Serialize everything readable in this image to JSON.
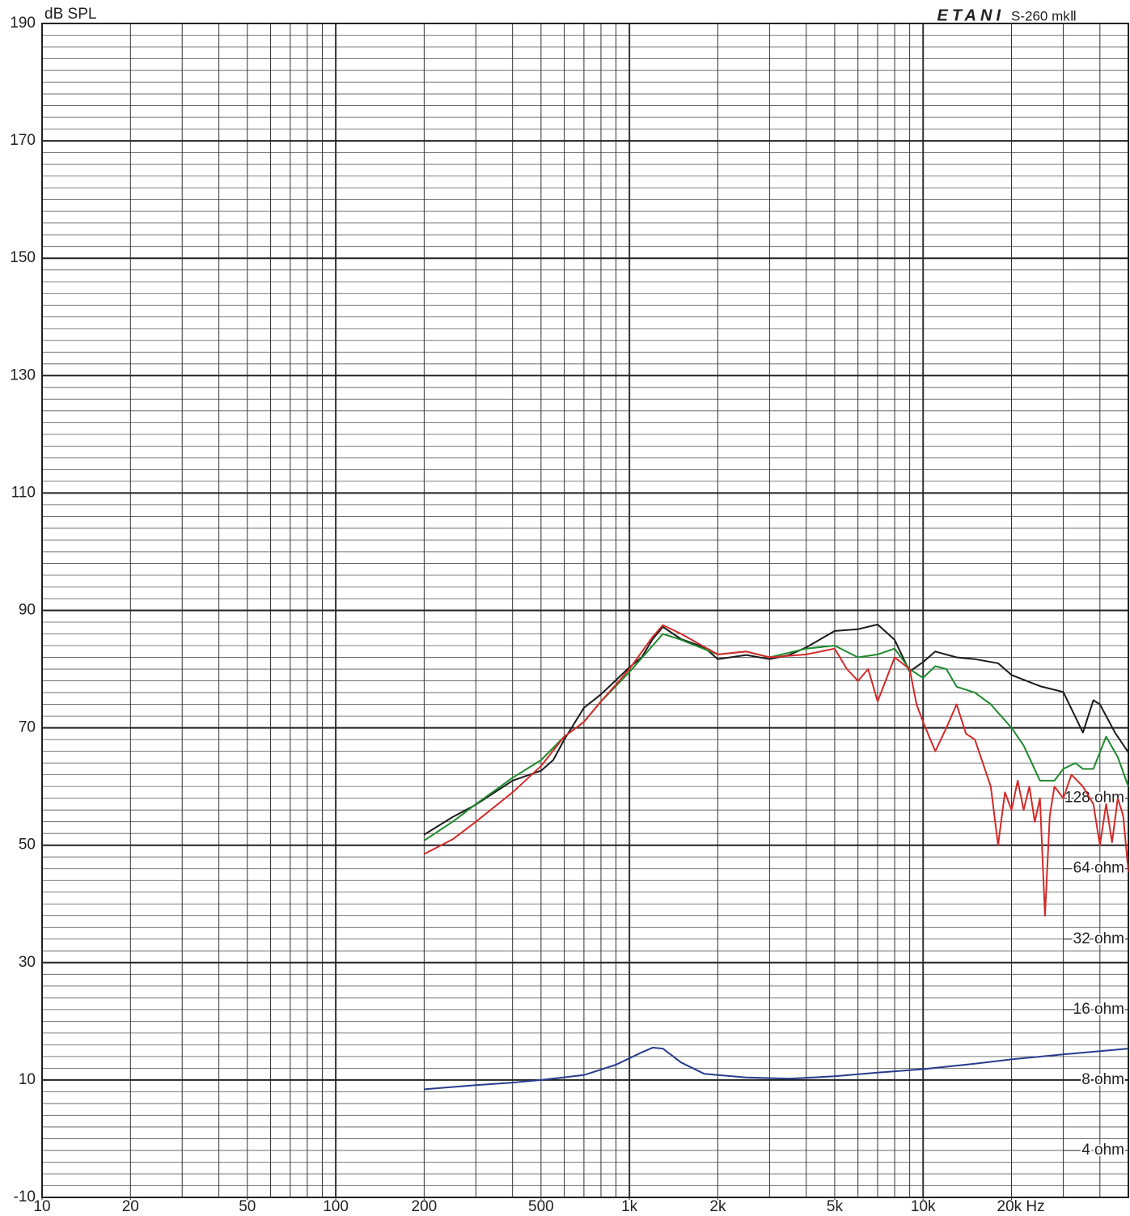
{
  "chart_data": {
    "type": "line",
    "brand": "ETANI",
    "title": "S-260 mkⅡ",
    "y_label": "dB SPL",
    "xlim": [
      10,
      50000
    ],
    "xlog": true,
    "xticks": [
      10,
      20,
      50,
      100,
      200,
      500,
      {
        "value": 1000,
        "label": "1k"
      },
      {
        "value": 2000,
        "label": "2k"
      },
      {
        "value": 5000,
        "label": "5k"
      },
      {
        "value": 10000,
        "label": "10k"
      },
      {
        "value": 20000,
        "label": "20k Hz"
      }
    ],
    "ylim": [
      -10,
      190
    ],
    "yticks": [
      -10,
      10,
      30,
      50,
      70,
      90,
      110,
      130,
      150,
      170,
      190
    ],
    "minor_ystep": 2,
    "grid": true,
    "y2lim": [
      2.52,
      262144
    ],
    "y2log": true,
    "y2ticks": [
      {
        "value": 128,
        "label": "128 ohm"
      },
      {
        "value": 64,
        "label": "64 ohm"
      },
      {
        "value": 32,
        "label": "32 ohm"
      },
      {
        "value": 16,
        "label": "16 ohm"
      },
      {
        "value": 8,
        "label": "8 ohm"
      },
      {
        "value": 4,
        "label": "4 ohm"
      }
    ],
    "series": [
      {
        "color": "#1a1a1a",
        "x": [
          200,
          250,
          300,
          400,
          500,
          550,
          600,
          700,
          800,
          1000,
          1100,
          1200,
          1300,
          1500,
          1800,
          2000,
          2500,
          3000,
          3500,
          4000,
          5000,
          6000,
          7000,
          8000,
          9000,
          10000,
          11000,
          13000,
          15000,
          18000,
          20000,
          25000,
          30000,
          35000,
          38000,
          40000,
          45000,
          50000
        ],
        "values": [
          51.8,
          54.8,
          56.9,
          61,
          62.7,
          64.5,
          68,
          73.4,
          75.7,
          80.3,
          82,
          85.1,
          87.2,
          85.1,
          83.7,
          81.7,
          82.4,
          81.7,
          82.4,
          83.7,
          86.5,
          86.8,
          87.6,
          85,
          79.6,
          81.2,
          83,
          82,
          81.7,
          81,
          79,
          77.1,
          76.1,
          69.2,
          74.7,
          74,
          69.2,
          65.8
        ]
      },
      {
        "color": "#1e8a2e",
        "x": [
          200,
          250,
          300,
          400,
          500,
          600,
          700,
          800,
          1000,
          1200,
          1300,
          1500,
          2000,
          2500,
          3000,
          4000,
          5000,
          6000,
          7000,
          8000,
          9000,
          10000,
          11000,
          12000,
          13000,
          15000,
          17000,
          20000,
          22000,
          25000,
          28000,
          30000,
          33000,
          35000,
          38000,
          42000,
          46000,
          50000
        ],
        "values": [
          50.8,
          54,
          57,
          61.5,
          64.5,
          68.5,
          71,
          74.5,
          79.5,
          84,
          86,
          85,
          82.5,
          83,
          82,
          83.5,
          84,
          82,
          82.5,
          83.5,
          80,
          78.5,
          80.5,
          80,
          77,
          76,
          74,
          70,
          67,
          61,
          61,
          63,
          64,
          63,
          63,
          68.5,
          65,
          60
        ]
      },
      {
        "color": "#d42a2a",
        "x": [
          200,
          250,
          300,
          400,
          500,
          600,
          700,
          800,
          1000,
          1200,
          1300,
          1500,
          2000,
          2500,
          3000,
          4000,
          5000,
          5500,
          6000,
          6500,
          7000,
          8000,
          9000,
          9500,
          10000,
          11000,
          12000,
          13000,
          14000,
          15000,
          17000,
          18000,
          19000,
          20000,
          21000,
          22000,
          23000,
          24000,
          25000,
          26000,
          27000,
          28000,
          30000,
          32000,
          35000,
          38000,
          40000,
          42000,
          44000,
          46000,
          48000,
          50000
        ],
        "values": [
          48.5,
          51,
          54,
          59,
          63.5,
          68.5,
          71,
          74.5,
          80,
          85.5,
          87.5,
          86,
          82.5,
          83,
          82,
          82.5,
          83.5,
          80,
          78,
          80,
          74.5,
          82,
          80,
          74,
          71,
          66,
          70,
          74,
          69,
          68,
          60,
          50,
          59,
          56,
          61,
          56,
          60,
          54,
          58,
          38,
          55,
          60,
          58,
          62,
          60,
          57,
          50,
          57,
          50.5,
          58,
          55,
          45.5
        ]
      },
      {
        "color": "#283c8c",
        "axis": "y2",
        "x": [
          200,
          300,
          400,
          500,
          700,
          900,
          1100,
          1200,
          1300,
          1500,
          1800,
          2500,
          3500,
          5000,
          7000,
          10000,
          15000,
          20000,
          30000,
          50000
        ],
        "values": [
          7.3,
          7.6,
          7.8,
          8.0,
          8.4,
          9.3,
          10.5,
          11.0,
          10.9,
          9.5,
          8.5,
          8.2,
          8.1,
          8.3,
          8.6,
          8.9,
          9.4,
          9.8,
          10.3,
          10.9
        ]
      }
    ]
  }
}
